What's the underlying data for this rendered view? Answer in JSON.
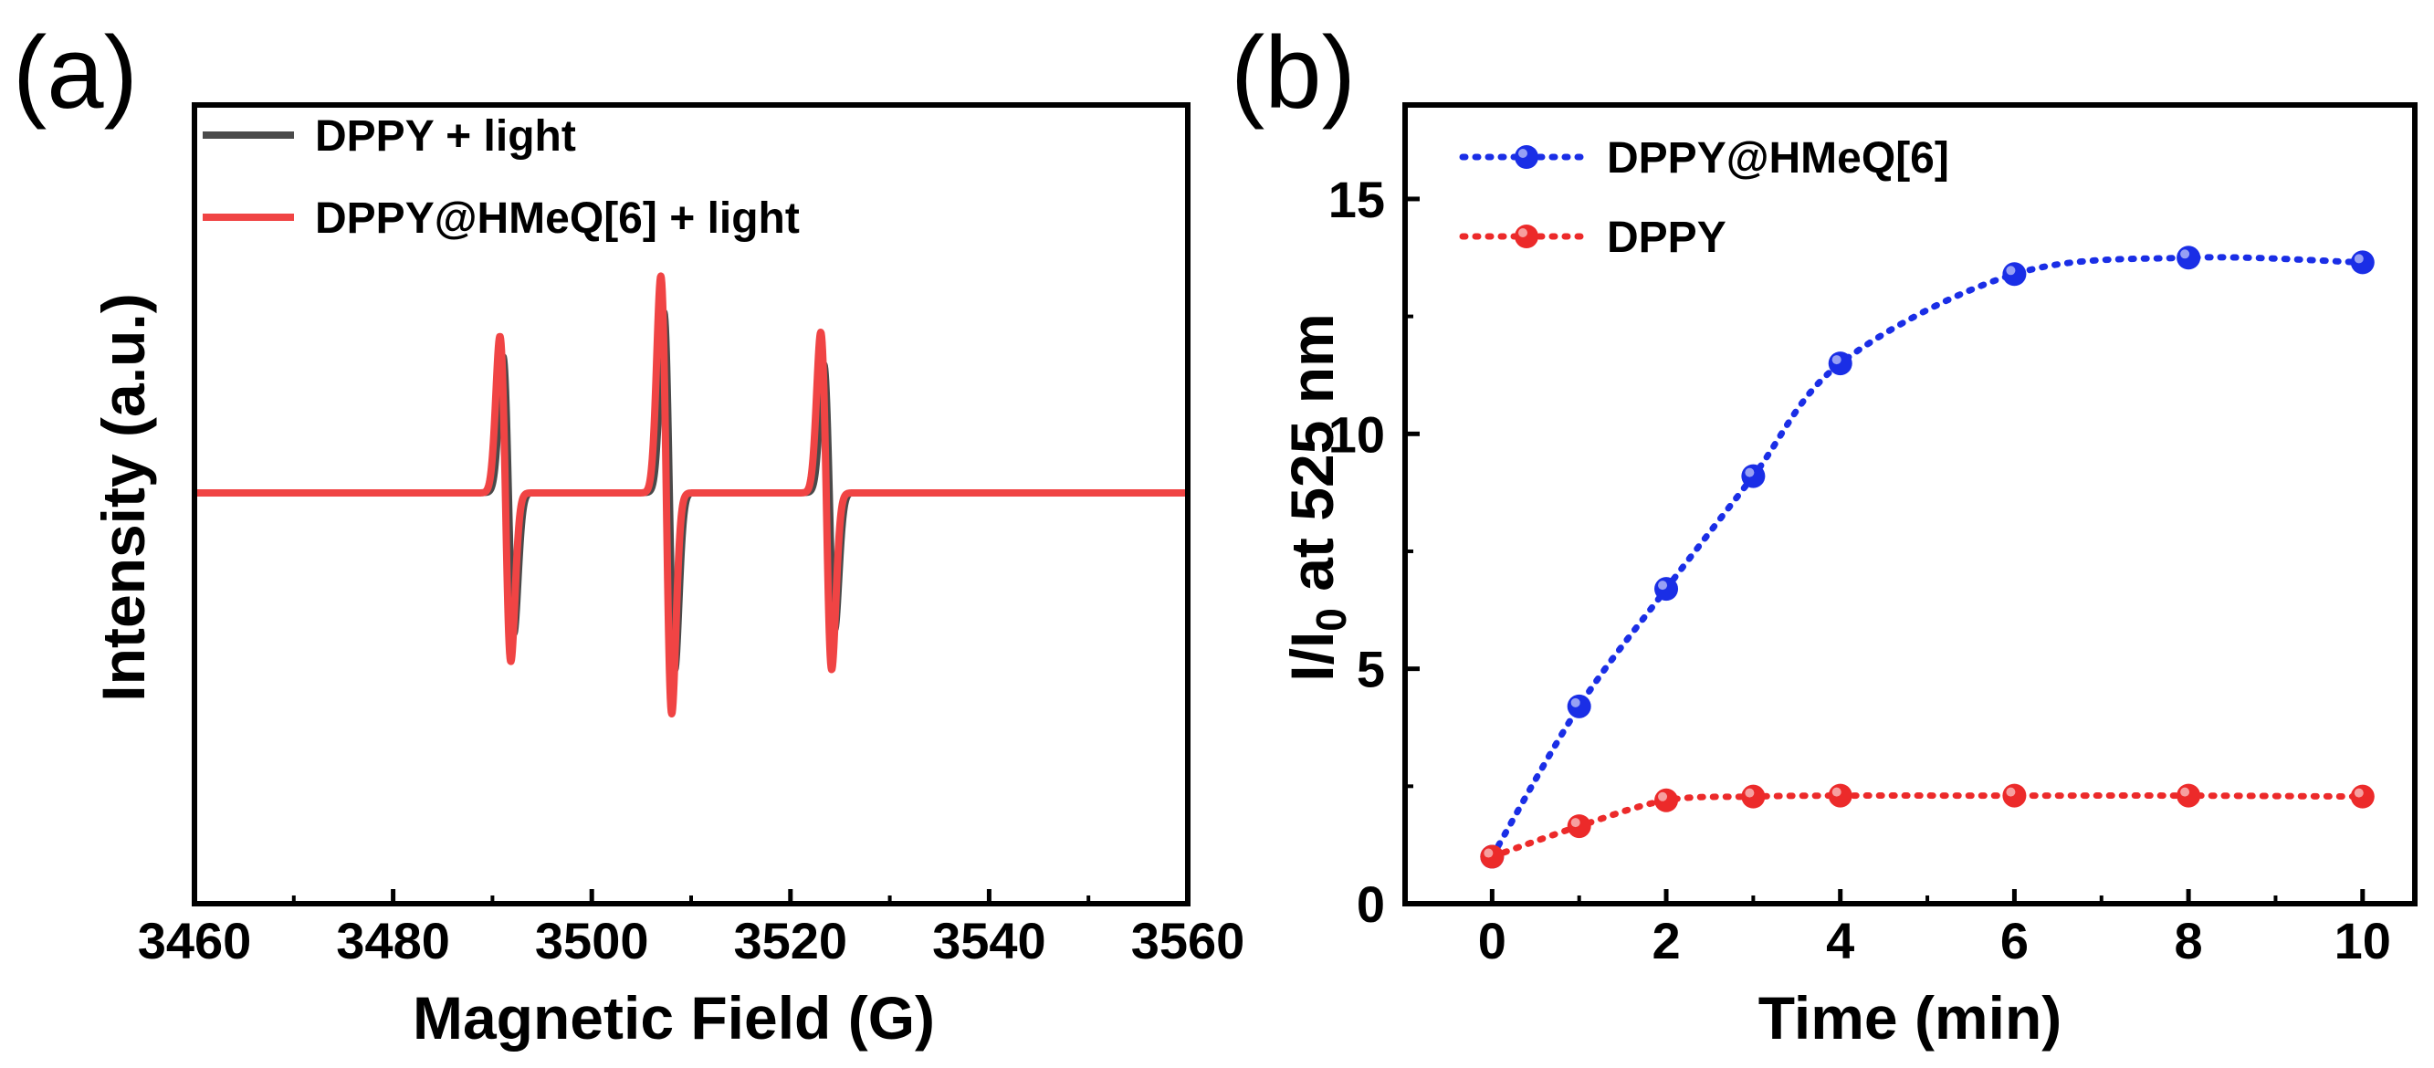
{
  "panels": {
    "a": {
      "letter": "(a)"
    },
    "b": {
      "letter": "(b)"
    }
  },
  "chart_data": [
    {
      "type": "line",
      "panel": "a",
      "title": "",
      "xlabel": "Magnetic Field (G)",
      "ylabel": "Intensity (a.u.)",
      "xlim": [
        3460,
        3560
      ],
      "ylim": [
        -1.15,
        1.15
      ],
      "xticks": [
        3460,
        3480,
        3500,
        3520,
        3540,
        3560
      ],
      "xtick_labels": [
        "3460",
        "3480",
        "3500",
        "3520",
        "3540",
        "3560"
      ],
      "yticks": [],
      "legend_position": "top-left",
      "peak_centers": [
        3491.3,
        3507.5,
        3523.6
      ],
      "series": [
        {
          "name": "DPPY + light",
          "color": "#4a4a4a",
          "peak_heights": [
            0.68,
            0.9,
            0.64
          ],
          "trough_depths": [
            0.7,
            0.88,
            0.68
          ],
          "center_shift": 0.35
        },
        {
          "name": "DPPY@HMeQ[6] + light",
          "color": "#f04444",
          "peak_heights": [
            0.78,
            1.08,
            0.8
          ],
          "trough_depths": [
            0.84,
            1.1,
            0.88
          ],
          "center_shift": 0
        }
      ]
    },
    {
      "type": "line",
      "panel": "b",
      "title": "",
      "xlabel": "Time (min)",
      "ylabel": "I/I0 at 525 nm",
      "ylabel_parts": {
        "main": "I/I",
        "sub": "0",
        "rest": " at 525 nm"
      },
      "xlim": [
        -1,
        10.6
      ],
      "ylim": [
        0,
        17
      ],
      "xticks": [
        0,
        2,
        4,
        6,
        8,
        10
      ],
      "xtick_labels": [
        "0",
        "2",
        "4",
        "6",
        "8",
        "10"
      ],
      "yticks": [
        0,
        5,
        10,
        15
      ],
      "ytick_labels": [
        "0",
        "5",
        "10",
        "15"
      ],
      "legend_position": "top-left",
      "series": [
        {
          "name": "DPPY@HMeQ[6]",
          "color": "#1a2ee6",
          "x": [
            0,
            1,
            2,
            3,
            4,
            6,
            8,
            10
          ],
          "y": [
            1.0,
            4.2,
            6.7,
            9.1,
            11.5,
            13.4,
            13.75,
            13.65
          ]
        },
        {
          "name": "DPPY",
          "color": "#ec2a2a",
          "x": [
            0,
            1,
            2,
            3,
            4,
            6,
            8,
            10
          ],
          "y": [
            1.0,
            1.65,
            2.2,
            2.28,
            2.3,
            2.3,
            2.3,
            2.28
          ]
        }
      ]
    }
  ]
}
